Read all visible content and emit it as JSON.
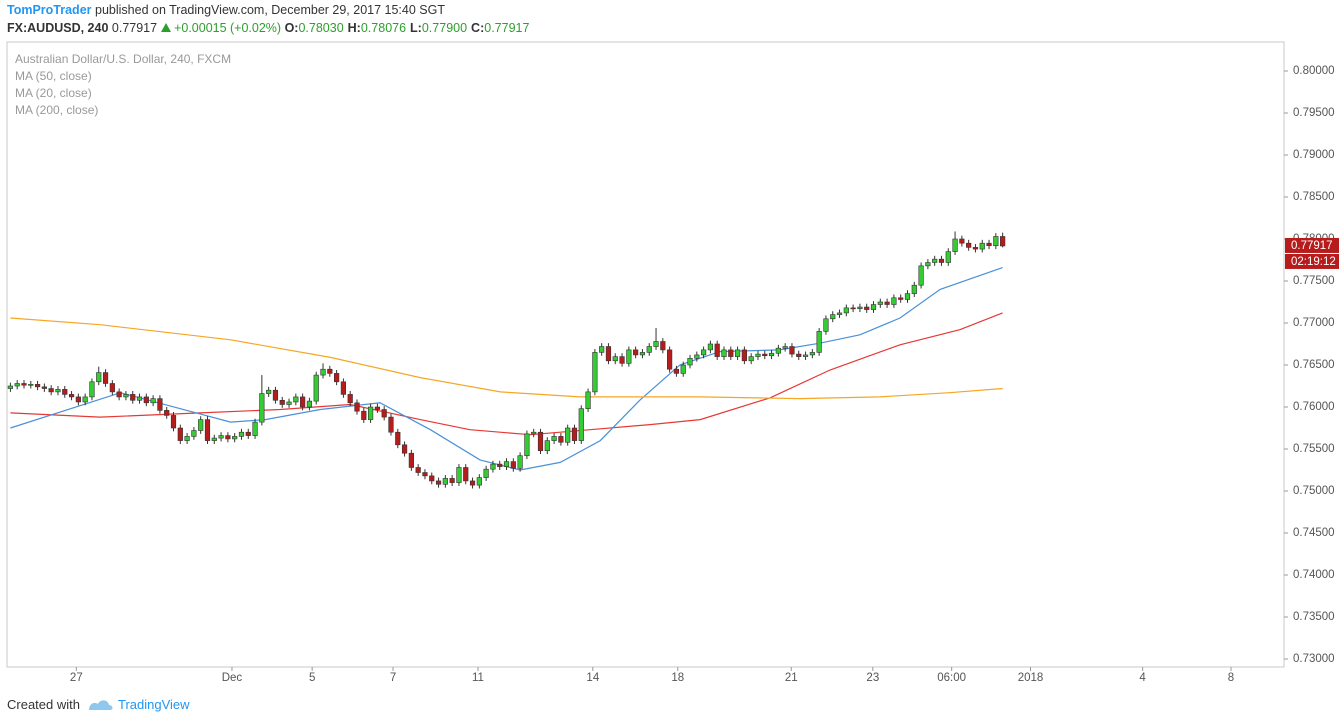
{
  "header": {
    "author": "TomProTrader",
    "published": "published on TradingView.com, December 29, 2017 15:40 SGT",
    "symbol": "FX:AUDUSD, 240",
    "last": "0.77917",
    "change": "+0.00015 (+0.02%)",
    "ohlc": [
      {
        "label": "O:",
        "value": "0.78030"
      },
      {
        "label": "H:",
        "value": "0.78076"
      },
      {
        "label": "L:",
        "value": "0.77900"
      },
      {
        "label": "C:",
        "value": "0.77917"
      }
    ]
  },
  "footer": {
    "created": "Created with",
    "brand": "TradingView"
  },
  "chart_data": {
    "type": "candlestick",
    "legend_title": "Australian Dollar/U.S. Dollar, 240, FXCM",
    "countdown": "02:19:12",
    "up_color": "#33cc33",
    "down_color": "#b71c1c",
    "xlim": [
      -0.5,
      187.4
    ],
    "ylim": [
      0.72905,
      0.80345
    ],
    "yticks": [
      {
        "value": 0.8,
        "label": "0.80000"
      },
      {
        "value": 0.795,
        "label": "0.79500"
      },
      {
        "value": 0.79,
        "label": "0.79000"
      },
      {
        "value": 0.785,
        "label": "0.78500"
      },
      {
        "value": 0.78,
        "label": "0.78000"
      },
      {
        "value": 0.775,
        "label": "0.77500"
      },
      {
        "value": 0.77,
        "label": "0.77000"
      },
      {
        "value": 0.765,
        "label": "0.76500"
      },
      {
        "value": 0.76,
        "label": "0.76000"
      },
      {
        "value": 0.755,
        "label": "0.75500"
      },
      {
        "value": 0.75,
        "label": "0.75000"
      },
      {
        "value": 0.745,
        "label": "0.74500"
      },
      {
        "value": 0.74,
        "label": "0.74000"
      },
      {
        "value": 0.735,
        "label": "0.73500"
      },
      {
        "value": 0.73,
        "label": "0.73000"
      }
    ],
    "xticks": [
      {
        "value": 9.7,
        "label": "27"
      },
      {
        "value": 32.6,
        "label": "Dec"
      },
      {
        "value": 44.4,
        "label": "5"
      },
      {
        "value": 56.3,
        "label": "7"
      },
      {
        "value": 68.8,
        "label": "11"
      },
      {
        "value": 85.7,
        "label": "14"
      },
      {
        "value": 98.2,
        "label": "18"
      },
      {
        "value": 114.9,
        "label": "21"
      },
      {
        "value": 126.9,
        "label": "23"
      },
      {
        "value": 138.5,
        "label": "06:00"
      },
      {
        "value": 150.1,
        "label": "2018"
      },
      {
        "value": 166.6,
        "label": "4"
      },
      {
        "value": 179.6,
        "label": "8"
      }
    ],
    "ohlc": [
      [
        0.7622,
        0.7629,
        0.7618,
        0.7625
      ],
      [
        0.7625,
        0.7632,
        0.7621,
        0.7628
      ],
      [
        0.7628,
        0.7632,
        0.7622,
        0.7626
      ],
      [
        0.7626,
        0.7631,
        0.7622,
        0.7627
      ],
      [
        0.7627,
        0.7631,
        0.762,
        0.7624
      ],
      [
        0.7624,
        0.7628,
        0.7618,
        0.7622
      ],
      [
        0.7622,
        0.7626,
        0.7614,
        0.7618
      ],
      [
        0.7618,
        0.7625,
        0.7614,
        0.7621
      ],
      [
        0.7621,
        0.7625,
        0.7611,
        0.7615
      ],
      [
        0.7615,
        0.7619,
        0.7608,
        0.7612
      ],
      [
        0.7612,
        0.7616,
        0.7602,
        0.7606
      ],
      [
        0.7606,
        0.7616,
        0.7602,
        0.7612
      ],
      [
        0.7612,
        0.7634,
        0.7608,
        0.763
      ],
      [
        0.763,
        0.7648,
        0.7626,
        0.7641
      ],
      [
        0.7641,
        0.7645,
        0.7624,
        0.7628
      ],
      [
        0.7628,
        0.7632,
        0.7614,
        0.7618
      ],
      [
        0.7618,
        0.7622,
        0.7608,
        0.7612
      ],
      [
        0.7612,
        0.7619,
        0.7608,
        0.7615
      ],
      [
        0.7615,
        0.7619,
        0.7604,
        0.7608
      ],
      [
        0.7608,
        0.7616,
        0.7604,
        0.7612
      ],
      [
        0.7612,
        0.7616,
        0.7601,
        0.7605
      ],
      [
        0.7605,
        0.7614,
        0.7601,
        0.761
      ],
      [
        0.761,
        0.7614,
        0.7592,
        0.7596
      ],
      [
        0.7596,
        0.76,
        0.7586,
        0.759
      ],
      [
        0.759,
        0.7594,
        0.7571,
        0.7575
      ],
      [
        0.7575,
        0.7579,
        0.7556,
        0.756
      ],
      [
        0.756,
        0.7569,
        0.7556,
        0.7565
      ],
      [
        0.7565,
        0.7576,
        0.7561,
        0.7572
      ],
      [
        0.7572,
        0.7589,
        0.7568,
        0.7585
      ],
      [
        0.7585,
        0.7589,
        0.7556,
        0.756
      ],
      [
        0.756,
        0.7567,
        0.7556,
        0.7563
      ],
      [
        0.7563,
        0.757,
        0.7559,
        0.7566
      ],
      [
        0.7566,
        0.757,
        0.7558,
        0.7562
      ],
      [
        0.7562,
        0.7569,
        0.7558,
        0.7565
      ],
      [
        0.7565,
        0.7574,
        0.7561,
        0.757
      ],
      [
        0.757,
        0.7574,
        0.7562,
        0.7566
      ],
      [
        0.7566,
        0.7586,
        0.7562,
        0.7582
      ],
      [
        0.7582,
        0.7638,
        0.7578,
        0.7616
      ],
      [
        0.7616,
        0.7624,
        0.7612,
        0.762
      ],
      [
        0.762,
        0.7624,
        0.7604,
        0.7608
      ],
      [
        0.7608,
        0.7612,
        0.7599,
        0.7603
      ],
      [
        0.7603,
        0.761,
        0.7599,
        0.7606
      ],
      [
        0.7606,
        0.7616,
        0.7602,
        0.7612
      ],
      [
        0.7612,
        0.7616,
        0.7596,
        0.76
      ],
      [
        0.76,
        0.7611,
        0.7596,
        0.7607
      ],
      [
        0.7607,
        0.7642,
        0.7603,
        0.7638
      ],
      [
        0.7638,
        0.7652,
        0.7634,
        0.7645
      ],
      [
        0.7645,
        0.7649,
        0.7636,
        0.764
      ],
      [
        0.764,
        0.7644,
        0.7626,
        0.763
      ],
      [
        0.763,
        0.7634,
        0.7611,
        0.7615
      ],
      [
        0.7615,
        0.7619,
        0.7601,
        0.7605
      ],
      [
        0.7605,
        0.7609,
        0.7591,
        0.7595
      ],
      [
        0.7595,
        0.7599,
        0.7581,
        0.7585
      ],
      [
        0.7585,
        0.7604,
        0.7581,
        0.76
      ],
      [
        0.76,
        0.7604,
        0.7593,
        0.7597
      ],
      [
        0.7597,
        0.7601,
        0.7584,
        0.7588
      ],
      [
        0.7588,
        0.7592,
        0.7566,
        0.757
      ],
      [
        0.757,
        0.7574,
        0.7551,
        0.7555
      ],
      [
        0.7555,
        0.7559,
        0.7541,
        0.7545
      ],
      [
        0.7545,
        0.7549,
        0.7524,
        0.7528
      ],
      [
        0.7528,
        0.7532,
        0.7518,
        0.7522
      ],
      [
        0.7522,
        0.7526,
        0.7514,
        0.7518
      ],
      [
        0.7518,
        0.7522,
        0.7508,
        0.7512
      ],
      [
        0.7512,
        0.7516,
        0.7504,
        0.7508
      ],
      [
        0.7508,
        0.7519,
        0.7504,
        0.7515
      ],
      [
        0.7515,
        0.7519,
        0.7506,
        0.751
      ],
      [
        0.751,
        0.7532,
        0.7506,
        0.7528
      ],
      [
        0.7528,
        0.7532,
        0.7508,
        0.7512
      ],
      [
        0.7512,
        0.7516,
        0.7503,
        0.7507
      ],
      [
        0.7507,
        0.752,
        0.7503,
        0.7516
      ],
      [
        0.7516,
        0.753,
        0.7512,
        0.7526
      ],
      [
        0.7526,
        0.7536,
        0.7522,
        0.7532
      ],
      [
        0.7532,
        0.7536,
        0.7525,
        0.7529
      ],
      [
        0.7529,
        0.7539,
        0.7525,
        0.7535
      ],
      [
        0.7535,
        0.7539,
        0.7523,
        0.7527
      ],
      [
        0.7527,
        0.7546,
        0.7523,
        0.7542
      ],
      [
        0.7542,
        0.7572,
        0.7538,
        0.7568
      ],
      [
        0.7568,
        0.7574,
        0.7564,
        0.757
      ],
      [
        0.757,
        0.7574,
        0.7544,
        0.7548
      ],
      [
        0.7548,
        0.7564,
        0.7544,
        0.756
      ],
      [
        0.756,
        0.7569,
        0.7556,
        0.7565
      ],
      [
        0.7565,
        0.7569,
        0.7554,
        0.7558
      ],
      [
        0.7558,
        0.7579,
        0.7554,
        0.7575
      ],
      [
        0.7575,
        0.7579,
        0.7556,
        0.756
      ],
      [
        0.756,
        0.7602,
        0.7556,
        0.7598
      ],
      [
        0.7598,
        0.7622,
        0.7594,
        0.7618
      ],
      [
        0.7618,
        0.7669,
        0.7614,
        0.7665
      ],
      [
        0.7665,
        0.7676,
        0.7661,
        0.7672
      ],
      [
        0.7672,
        0.7676,
        0.7651,
        0.7655
      ],
      [
        0.7655,
        0.7664,
        0.7651,
        0.766
      ],
      [
        0.766,
        0.7664,
        0.7648,
        0.7652
      ],
      [
        0.7652,
        0.7672,
        0.7648,
        0.7668
      ],
      [
        0.7668,
        0.7672,
        0.7658,
        0.7662
      ],
      [
        0.7662,
        0.7669,
        0.7658,
        0.7665
      ],
      [
        0.7665,
        0.7676,
        0.7661,
        0.7672
      ],
      [
        0.7672,
        0.7694,
        0.7668,
        0.7678
      ],
      [
        0.7678,
        0.7682,
        0.7664,
        0.7668
      ],
      [
        0.7668,
        0.7672,
        0.7641,
        0.7645
      ],
      [
        0.7645,
        0.7649,
        0.7636,
        0.764
      ],
      [
        0.764,
        0.7654,
        0.7636,
        0.765
      ],
      [
        0.765,
        0.7662,
        0.7646,
        0.7658
      ],
      [
        0.7658,
        0.7666,
        0.7654,
        0.7662
      ],
      [
        0.7662,
        0.7672,
        0.7658,
        0.7668
      ],
      [
        0.7668,
        0.7679,
        0.7664,
        0.7675
      ],
      [
        0.7675,
        0.7679,
        0.7656,
        0.766
      ],
      [
        0.766,
        0.7672,
        0.7656,
        0.7668
      ],
      [
        0.7668,
        0.7672,
        0.7656,
        0.766
      ],
      [
        0.766,
        0.7672,
        0.7656,
        0.7668
      ],
      [
        0.7668,
        0.7672,
        0.7651,
        0.7655
      ],
      [
        0.7655,
        0.7664,
        0.7651,
        0.766
      ],
      [
        0.766,
        0.7667,
        0.7656,
        0.7663
      ],
      [
        0.7663,
        0.7667,
        0.7657,
        0.7661
      ],
      [
        0.7661,
        0.7668,
        0.7657,
        0.7664
      ],
      [
        0.7664,
        0.7674,
        0.766,
        0.767
      ],
      [
        0.767,
        0.7676,
        0.7666,
        0.7672
      ],
      [
        0.7672,
        0.7676,
        0.7659,
        0.7663
      ],
      [
        0.7663,
        0.7667,
        0.7656,
        0.766
      ],
      [
        0.766,
        0.7666,
        0.7656,
        0.7662
      ],
      [
        0.7662,
        0.7669,
        0.7658,
        0.7665
      ],
      [
        0.7665,
        0.7694,
        0.7661,
        0.769
      ],
      [
        0.769,
        0.7709,
        0.7686,
        0.7705
      ],
      [
        0.7705,
        0.7714,
        0.7701,
        0.771
      ],
      [
        0.771,
        0.7716,
        0.7706,
        0.7712
      ],
      [
        0.7712,
        0.7722,
        0.7708,
        0.7718
      ],
      [
        0.7718,
        0.7722,
        0.7713,
        0.7717
      ],
      [
        0.7717,
        0.7723,
        0.7713,
        0.7719
      ],
      [
        0.7719,
        0.7723,
        0.7712,
        0.7716
      ],
      [
        0.7716,
        0.7726,
        0.7712,
        0.7722
      ],
      [
        0.7722,
        0.7729,
        0.7718,
        0.7725
      ],
      [
        0.7725,
        0.7729,
        0.7718,
        0.7722
      ],
      [
        0.7722,
        0.7734,
        0.7718,
        0.773
      ],
      [
        0.773,
        0.7734,
        0.7724,
        0.7728
      ],
      [
        0.7728,
        0.7739,
        0.7724,
        0.7735
      ],
      [
        0.7735,
        0.7749,
        0.7731,
        0.7745
      ],
      [
        0.7745,
        0.7772,
        0.7741,
        0.7768
      ],
      [
        0.7768,
        0.7776,
        0.7764,
        0.7772
      ],
      [
        0.7772,
        0.778,
        0.7768,
        0.7776
      ],
      [
        0.7776,
        0.778,
        0.7768,
        0.7772
      ],
      [
        0.7772,
        0.7789,
        0.7768,
        0.7785
      ],
      [
        0.7785,
        0.7809,
        0.7781,
        0.78
      ],
      [
        0.78,
        0.7804,
        0.7791,
        0.7795
      ],
      [
        0.7795,
        0.7799,
        0.7786,
        0.779
      ],
      [
        0.779,
        0.7794,
        0.7784,
        0.7788
      ],
      [
        0.7788,
        0.7799,
        0.7784,
        0.7795
      ],
      [
        0.7795,
        0.7799,
        0.7788,
        0.7792
      ],
      [
        0.7792,
        0.7807,
        0.7788,
        0.7803
      ],
      [
        0.7803,
        0.78076,
        0.779,
        0.77917
      ]
    ],
    "series": [
      {
        "name": "MA (50, close)",
        "color": "#e53935",
        "x": [
          0,
          13.2,
          27.9,
          39.7,
          50,
          60.3,
          67.6,
          76.5,
          85.3,
          94.1,
          101.5,
          111.8,
          120.6,
          130.9,
          139.7,
          146
        ],
        "values": [
          0.7593,
          0.7588,
          0.7593,
          0.7597,
          0.7603,
          0.7585,
          0.7573,
          0.7567,
          0.7573,
          0.7579,
          0.7585,
          0.7611,
          0.7644,
          0.7674,
          0.7692,
          0.7712
        ]
      },
      {
        "name": "MA (20, close)",
        "color": "#4a90d9",
        "x": [
          0,
          16.2,
          32.4,
          37.5,
          45.6,
          54.4,
          61.8,
          69.1,
          75,
          80.9,
          86.8,
          92.6,
          98.5,
          104.4,
          113.2,
          119.1,
          125,
          130.9,
          136.8,
          146
        ],
        "values": [
          0.7575,
          0.7617,
          0.7582,
          0.7585,
          0.7597,
          0.7605,
          0.7573,
          0.7537,
          0.7525,
          0.7534,
          0.756,
          0.7608,
          0.765,
          0.7666,
          0.7668,
          0.7676,
          0.7686,
          0.7706,
          0.774,
          0.7766
        ]
      },
      {
        "name": "MA (200, close)",
        "color": "#f5a623",
        "x": [
          0,
          13.2,
          32.4,
          47.1,
          60.3,
          72.1,
          83.8,
          101.5,
          116.2,
          127.9,
          138.2,
          146
        ],
        "values": [
          0.7706,
          0.7698,
          0.768,
          0.7659,
          0.7635,
          0.7618,
          0.7612,
          0.7612,
          0.761,
          0.7612,
          0.7617,
          0.7622
        ]
      }
    ]
  }
}
